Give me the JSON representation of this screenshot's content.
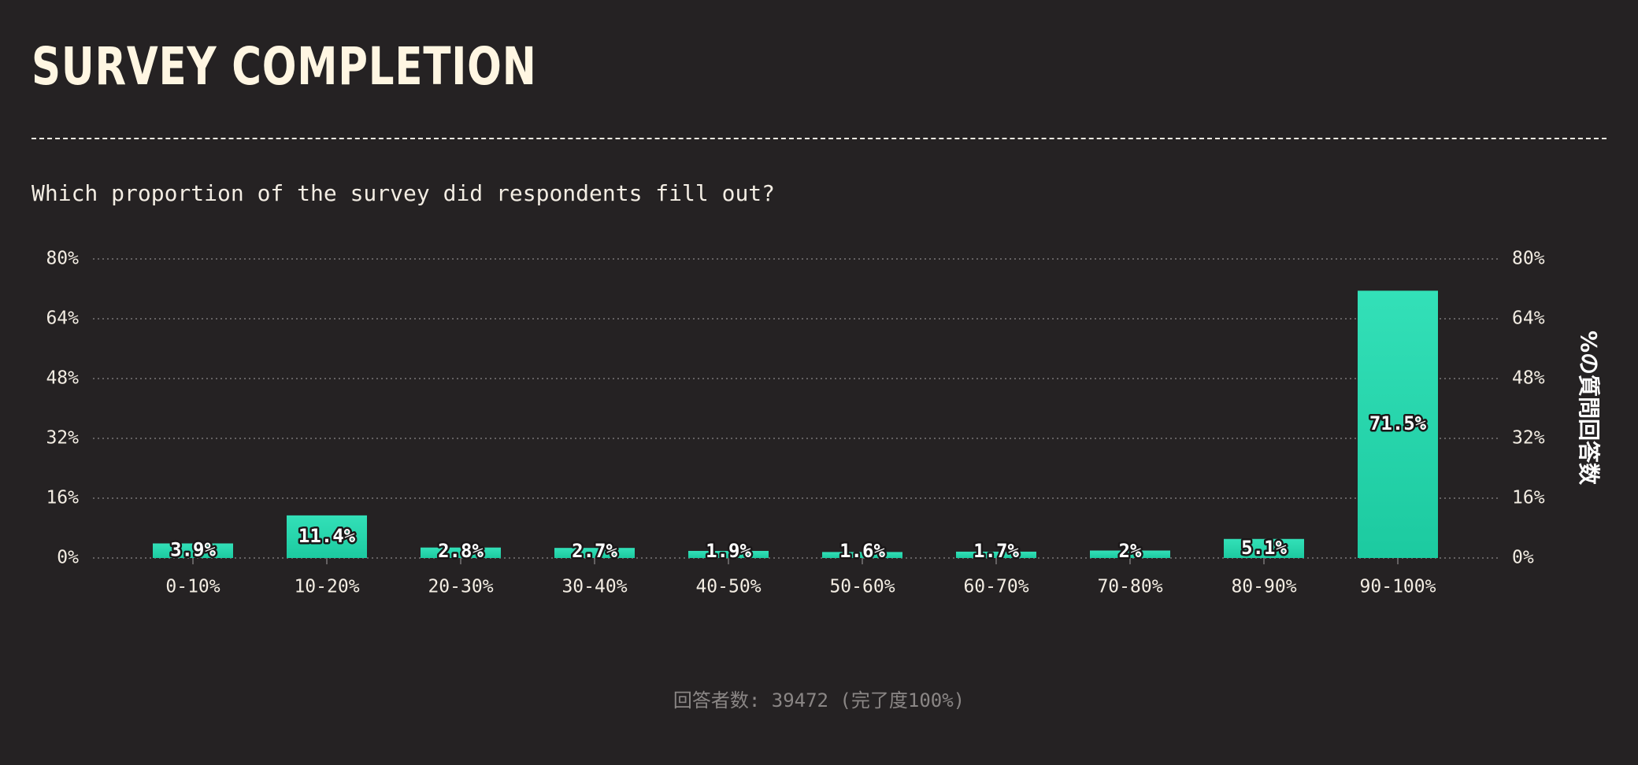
{
  "header": {
    "title": "SURVEY COMPLETION",
    "subtitle": "Which proportion of the survey did respondents fill out?"
  },
  "footer": {
    "note": "回答者数: 39472 (完了度100%)"
  },
  "colors": {
    "background": "#252223",
    "bar_top": "#33e0b8",
    "bar_bottom": "#1ccaa0",
    "text": "#f3ede3",
    "muted": "#8a8685"
  },
  "chart_data": {
    "type": "bar",
    "categories": [
      "0-10%",
      "10-20%",
      "20-30%",
      "30-40%",
      "40-50%",
      "50-60%",
      "60-70%",
      "70-80%",
      "80-90%",
      "90-100%"
    ],
    "values": [
      3.9,
      11.4,
      2.8,
      2.7,
      1.9,
      1.6,
      1.7,
      2,
      5.1,
      71.5
    ],
    "data_labels": [
      "3.9%",
      "11.4%",
      "2.8%",
      "2.7%",
      "1.9%",
      "1.6%",
      "1.7%",
      "2%",
      "5.1%",
      "71.5%"
    ],
    "yticks": [
      0,
      16,
      32,
      48,
      64,
      80
    ],
    "ytick_labels": [
      "0%",
      "16%",
      "32%",
      "48%",
      "64%",
      "80%"
    ],
    "ylim": [
      0,
      80
    ],
    "ylabel_right": "%の質問回答数",
    "grid": true,
    "legend": "none"
  }
}
